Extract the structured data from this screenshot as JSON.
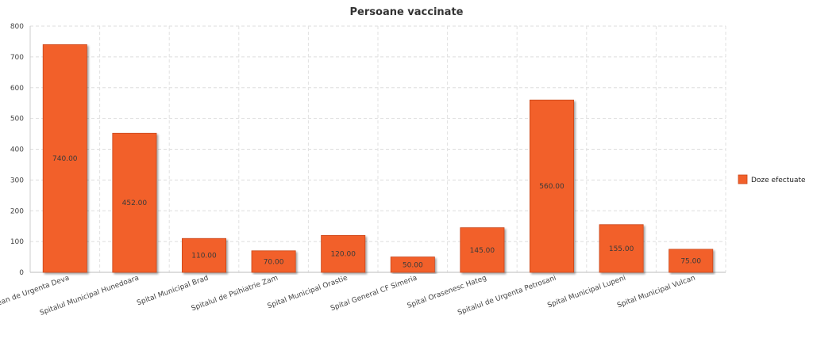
{
  "chart_data": {
    "type": "bar",
    "title": "Persoane vaccinate",
    "xlabel": "",
    "ylabel": "",
    "categories": [
      "Spitalul Judetean de Urgenta Deva",
      "Spitalul Municipal Hunedoara",
      "Spital Municipal Brad",
      "Spitalul de Psihiatrie Zam",
      "Spital Municipal Orastie",
      "Spital General CF Simeria",
      "Spital Orasenesc Hateg",
      "Spitalul de Urgenta Petrosani",
      "Spital Municipal Lupeni",
      "Spital Municipal Vulcan"
    ],
    "series": [
      {
        "name": "Doze efectuate",
        "color": "#f2602b",
        "values": [
          740,
          452,
          110,
          70,
          120,
          50,
          145,
          560,
          155,
          75
        ],
        "labels": [
          "740.00",
          "452.00",
          "110.00",
          "70.00",
          "120.00",
          "50.00",
          "145.00",
          "560.00",
          "155.00",
          "75.00"
        ]
      }
    ],
    "ylim": [
      0,
      800
    ],
    "yticks": [
      0,
      100,
      200,
      300,
      400,
      500,
      600,
      700,
      800
    ],
    "grid": true,
    "legend_position": "right"
  }
}
